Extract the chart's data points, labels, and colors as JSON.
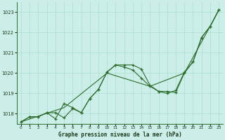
{
  "title": "Graphe pression niveau de la mer (hPa)",
  "bg_color": "#cceee8",
  "grid_color": "#aaddcc",
  "line_color": "#2d6e2d",
  "xlim": [
    -0.5,
    23.5
  ],
  "ylim": [
    1017.5,
    1023.5
  ],
  "xticks": [
    0,
    1,
    2,
    3,
    4,
    5,
    6,
    7,
    8,
    9,
    10,
    11,
    12,
    13,
    14,
    15,
    16,
    17,
    18,
    19,
    20,
    21,
    22,
    23
  ],
  "yticks": [
    1018,
    1019,
    1020,
    1021,
    1022,
    1023
  ],
  "s1": [
    1017.6,
    1017.85,
    1017.85,
    1018.05,
    1018.05,
    1017.8,
    1018.25,
    1018.05,
    1018.75,
    1019.2,
    1020.05,
    1020.4,
    1020.4,
    1020.4,
    1020.2,
    1019.4,
    1019.1,
    1019.1,
    1019.05,
    1020.0,
    1020.55,
    1021.75,
    1022.3,
    1023.1
  ],
  "s2": [
    1017.6,
    1017.85,
    1017.85,
    1018.05,
    1017.75,
    1018.5,
    1018.3,
    1018.05,
    1018.75,
    1019.2,
    1020.05,
    1020.4,
    1020.3,
    1020.15,
    1019.75,
    1019.35,
    1019.1,
    1019.0,
    1019.15,
    1020.05,
    1020.55,
    1021.75,
    1022.3,
    1023.1
  ],
  "s3_x": [
    0,
    5,
    10,
    15,
    19,
    22,
    23
  ],
  "s3_y": [
    1017.6,
    1018.3,
    1020.0,
    1019.35,
    1020.0,
    1022.3,
    1023.1
  ]
}
